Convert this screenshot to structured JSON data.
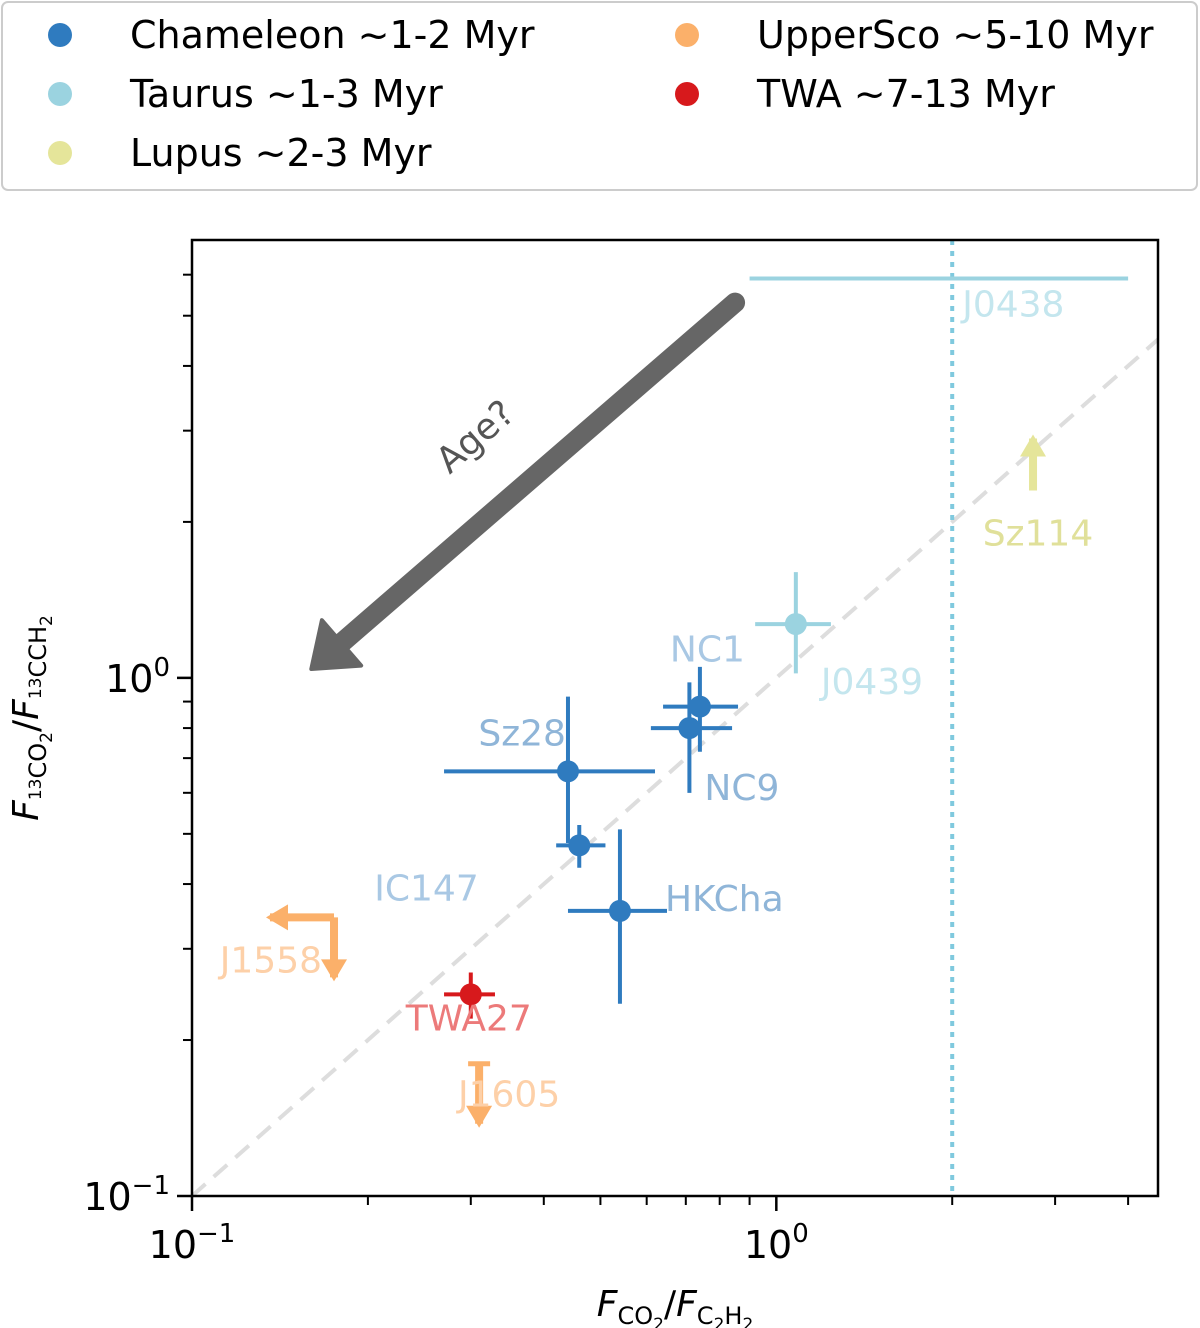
{
  "chart_data": {
    "type": "scatter",
    "xscale": "log",
    "yscale": "log",
    "xlim": [
      0.1,
      4.5
    ],
    "ylim": [
      0.1,
      7.0
    ],
    "xticks": [
      {
        "value": 0.1,
        "base": "10",
        "exp": "−1"
      },
      {
        "value": 1.0,
        "base": "10",
        "exp": "0"
      }
    ],
    "yticks": [
      {
        "value": 0.1,
        "base": "10",
        "exp": "−1"
      },
      {
        "value": 1.0,
        "base": "10",
        "exp": "0"
      }
    ],
    "xlabel": {
      "f1": "F",
      "s1": "CO",
      "s1b": "2",
      "slash": "/",
      "f2": "F",
      "s2": "C",
      "s2b": "2",
      "s2c": "H",
      "s2d": "2"
    },
    "ylabel": {
      "f1": "F",
      "s1a": "13",
      "s1b": "CO",
      "s1c": "2",
      "slash": "/",
      "f2": "F",
      "s2a": "13",
      "s2b": "CCH",
      "s2c": "2"
    },
    "legend": [
      {
        "label": "Chameleon ~1-2 Myr",
        "color": "#2f7bbf"
      },
      {
        "label": "Taurus ~1-3 Myr",
        "color": "#9bd3e0"
      },
      {
        "label": "Lupus ~2-3 Myr",
        "color": "#e5e59a"
      },
      {
        "label": "UpperSco ~5-10 Myr",
        "color": "#fbb06a"
      },
      {
        "label": "TWA ~7-13 Myr",
        "color": "#d7191c"
      }
    ],
    "legend_position": "top, above plot",
    "one_to_one_line": true,
    "vline_x": 2.0,
    "vline_color": "#7fc9de",
    "trend_arrow_label": "Age?",
    "points": [
      {
        "name": "Sz28",
        "group": "Chameleon",
        "x": 0.44,
        "y": 0.66,
        "xerr": [
          0.27,
          0.62
        ],
        "yerr": [
          0.48,
          0.92
        ],
        "label_color": "#8fb5d8"
      },
      {
        "name": "IC147",
        "group": "Chameleon",
        "x": 0.46,
        "y": 0.475,
        "xerr": [
          0.42,
          0.51
        ],
        "yerr": [
          0.43,
          0.52
        ],
        "label_color": "#a9c8e4"
      },
      {
        "name": "HKCha",
        "group": "Chameleon",
        "x": 0.54,
        "y": 0.355,
        "xerr": [
          0.44,
          0.65
        ],
        "yerr": [
          0.235,
          0.51
        ],
        "label_color": "#8fb5d8"
      },
      {
        "name": "NC1",
        "group": "Chameleon",
        "x": 0.74,
        "y": 0.88,
        "xerr": [
          0.64,
          0.86
        ],
        "yerr": [
          0.72,
          1.05
        ],
        "label_color": "#a9c8e4"
      },
      {
        "name": "NC9",
        "group": "Chameleon",
        "x": 0.71,
        "y": 0.8,
        "xerr": [
          0.61,
          0.84
        ],
        "yerr": [
          0.6,
          0.98
        ],
        "label_color": "#8fb5d8"
      },
      {
        "name": "J0439",
        "group": "Taurus",
        "x": 1.08,
        "y": 1.27,
        "xerr": [
          0.92,
          1.24
        ],
        "yerr": [
          1.02,
          1.6
        ],
        "label_color": "#c4e6ee"
      },
      {
        "name": "J0438",
        "group": "Taurus",
        "x": 2.0,
        "y": 5.9,
        "xerr": [
          0.9,
          4.0
        ],
        "yerr": null,
        "label_color": "#c4e6ee"
      },
      {
        "name": "Sz114",
        "group": "Lupus",
        "x": 2.75,
        "y": 2.3,
        "limit": "lower-y",
        "label_color": "#e0e09a"
      },
      {
        "name": "TWA27",
        "group": "TWA",
        "x": 0.3,
        "y": 0.245,
        "xerr": [
          0.27,
          0.33
        ],
        "yerr": [
          0.22,
          0.27
        ],
        "label_color": "#ec7a7a"
      },
      {
        "name": "J1558",
        "group": "UpperSco",
        "x": 0.175,
        "y": 0.345,
        "limit": "upper-x-upper-y",
        "label_color": "#fdd0a8"
      },
      {
        "name": "J1605",
        "group": "UpperSco",
        "x": 0.31,
        "y": 0.18,
        "limit": "upper-y",
        "label_color": "#fdd0a8"
      }
    ]
  }
}
